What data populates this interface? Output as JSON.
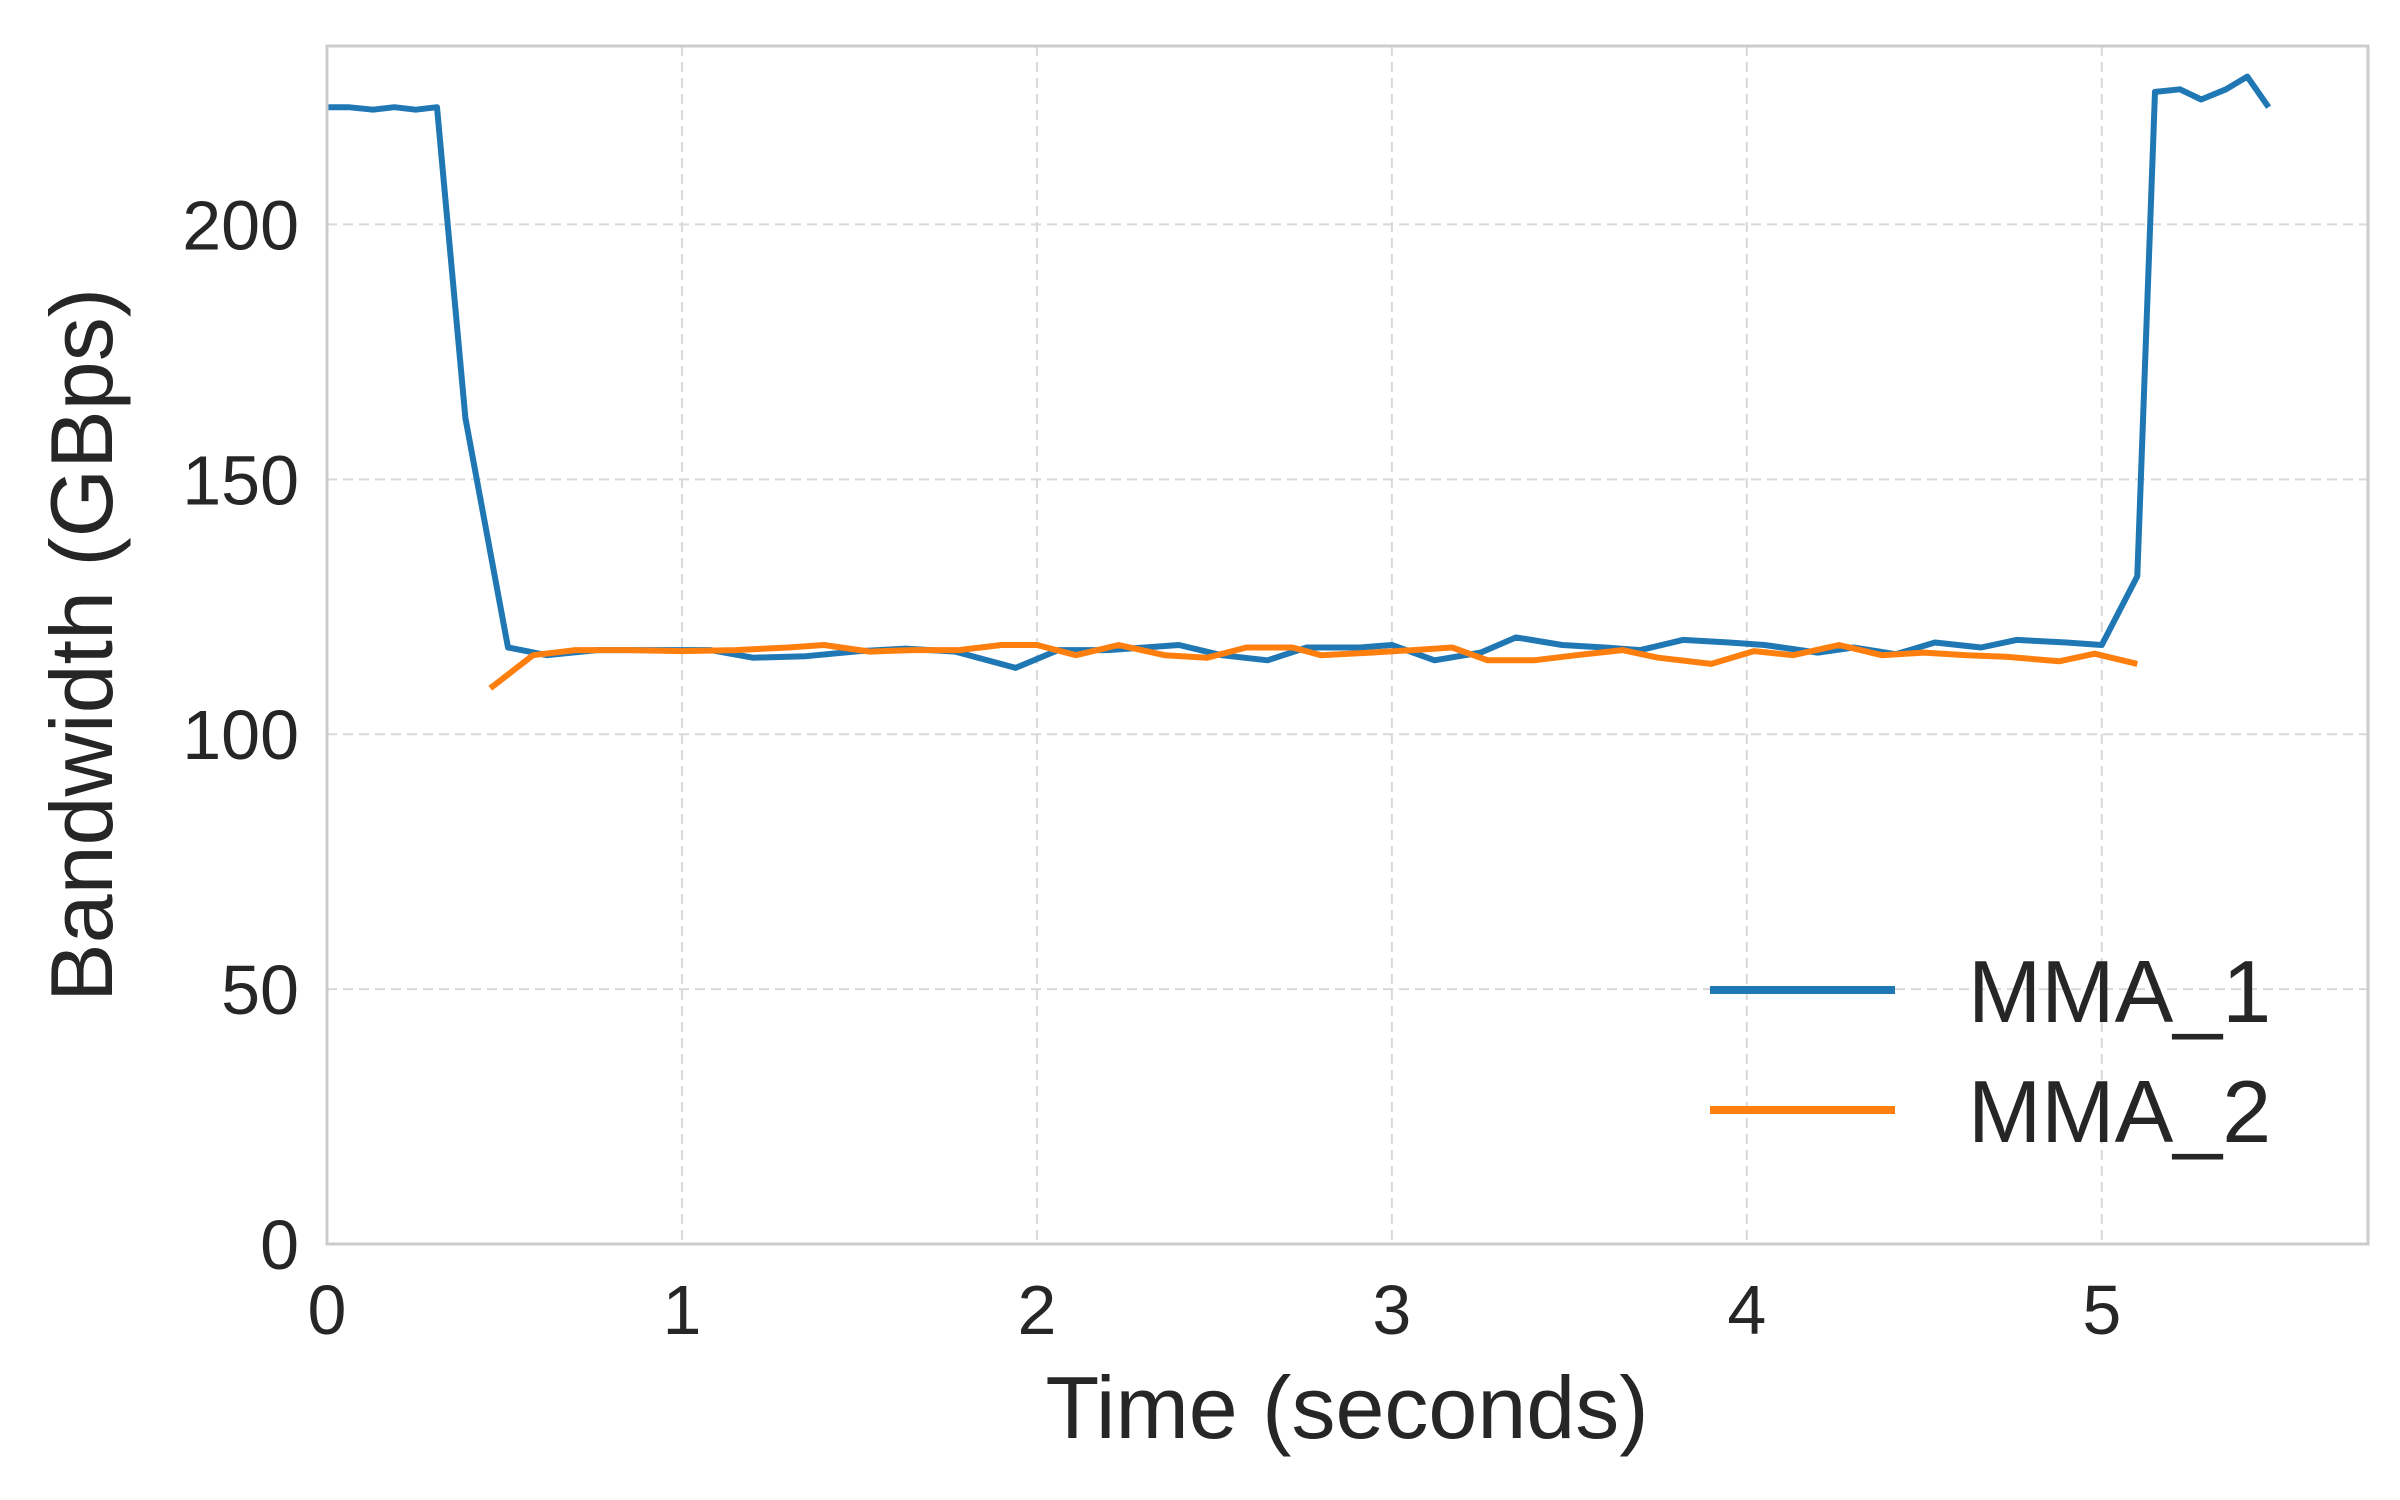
{
  "chart_data": {
    "type": "line",
    "xlabel": "Time (seconds)",
    "ylabel": "Bandwidth (GBps)",
    "xlim": [
      0,
      5.75
    ],
    "ylim": [
      0,
      235
    ],
    "xticks": [
      0,
      1,
      2,
      3,
      4,
      5
    ],
    "yticks": [
      0,
      50,
      100,
      150,
      200
    ],
    "grid": true,
    "legend_position": "bottom-right",
    "series": [
      {
        "name": "MMA_1",
        "color": "#1f77b4",
        "x": [
          0,
          0.06,
          0.13,
          0.19,
          0.25,
          0.31,
          0.39,
          0.51,
          0.62,
          0.76,
          0.9,
          1.08,
          1.2,
          1.35,
          1.5,
          1.63,
          1.77,
          1.94,
          2.06,
          2.2,
          2.4,
          2.52,
          2.65,
          2.76,
          2.91,
          3.0,
          3.12,
          3.25,
          3.35,
          3.48,
          3.6,
          3.7,
          3.82,
          3.95,
          4.05,
          4.2,
          4.3,
          4.42,
          4.53,
          4.66,
          4.76,
          4.9,
          5.0,
          5.1,
          5.15,
          5.22,
          5.28,
          5.35,
          5.41,
          5.47
        ],
        "y": [
          223,
          223,
          222.5,
          223,
          222.5,
          223,
          162,
          117,
          115.5,
          116.5,
          116.5,
          116.5,
          115,
          115.3,
          116.3,
          116.8,
          116.2,
          113,
          116.5,
          116.5,
          117.5,
          115.5,
          114.5,
          117,
          117,
          117.5,
          114.5,
          116,
          119,
          117.5,
          117,
          116.5,
          118.5,
          118,
          117.5,
          116,
          117,
          115.7,
          118,
          117,
          118.5,
          118,
          117.5,
          131,
          226,
          226.5,
          224.5,
          226.5,
          229,
          223
        ]
      },
      {
        "name": "MMA_2",
        "color": "#ff7f0e",
        "x": [
          0.46,
          0.58,
          0.7,
          0.85,
          1.0,
          1.15,
          1.3,
          1.4,
          1.53,
          1.65,
          1.78,
          1.9,
          2.0,
          2.11,
          2.23,
          2.36,
          2.48,
          2.59,
          2.72,
          2.8,
          2.94,
          3.06,
          3.17,
          3.27,
          3.4,
          3.52,
          3.65,
          3.75,
          3.9,
          4.02,
          4.13,
          4.26,
          4.38,
          4.5,
          4.62,
          4.73,
          4.88,
          4.98,
          5.1
        ],
        "y": [
          109,
          115.5,
          116.5,
          116.5,
          116.3,
          116.5,
          117,
          117.5,
          116.2,
          116.5,
          116.5,
          117.5,
          117.5,
          115.5,
          117.5,
          115.5,
          115,
          117,
          117,
          115.5,
          116,
          116.5,
          117,
          114.5,
          114.5,
          115.5,
          116.5,
          115,
          113.8,
          116.3,
          115.5,
          117.5,
          115.5,
          116,
          115.5,
          115.2,
          114.3,
          115.8,
          113.8
        ]
      }
    ]
  }
}
